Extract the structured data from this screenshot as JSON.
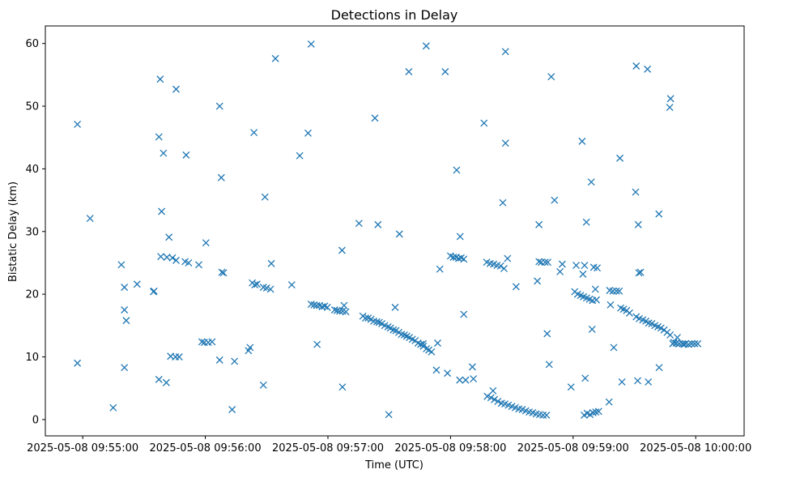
{
  "chart_data": {
    "type": "scatter",
    "title": "Detections in Delay",
    "xlabel": "Time (UTC)",
    "ylabel": "Bistatic Delay (km)",
    "x_unit": "seconds after 2025-05-08 09:55:00 UTC",
    "xlim": [
      -18.3,
      323.7
    ],
    "ylim": [
      -2.6,
      62.8
    ],
    "x_ticks": [
      {
        "value": 0,
        "label": "2025-05-08 09:55:00"
      },
      {
        "value": 60,
        "label": "2025-05-08 09:56:00"
      },
      {
        "value": 120,
        "label": "2025-05-08 09:57:00"
      },
      {
        "value": 180,
        "label": "2025-05-08 09:58:00"
      },
      {
        "value": 240,
        "label": "2025-05-08 09:59:00"
      },
      {
        "value": 300,
        "label": "2025-05-08 10:00:00"
      }
    ],
    "y_ticks": [
      {
        "value": 0,
        "label": "0"
      },
      {
        "value": 10,
        "label": "10"
      },
      {
        "value": 20,
        "label": "20"
      },
      {
        "value": 30,
        "label": "30"
      },
      {
        "value": 40,
        "label": "40"
      },
      {
        "value": 50,
        "label": "50"
      },
      {
        "value": 60,
        "label": "60"
      }
    ],
    "marker": "x",
    "color": "#1f77b4",
    "grid": false,
    "series": [
      {
        "name": "Detections",
        "points": [
          [
            -2.6,
            47.1
          ],
          [
            -2.6,
            9.0
          ],
          [
            3.6,
            32.1
          ],
          [
            14.9,
            1.9
          ],
          [
            18.9,
            24.7
          ],
          [
            20.4,
            21.1
          ],
          [
            20.4,
            17.5
          ],
          [
            20.4,
            8.3
          ],
          [
            21.3,
            15.8
          ],
          [
            26.6,
            21.6
          ],
          [
            34.6,
            20.4
          ],
          [
            34.9,
            20.5
          ],
          [
            37.9,
            54.3
          ],
          [
            37.3,
            45.1
          ],
          [
            38.6,
            33.2
          ],
          [
            39.5,
            42.5
          ],
          [
            42.2,
            29.1
          ],
          [
            38.2,
            26.0
          ],
          [
            41.2,
            25.9
          ],
          [
            43.9,
            25.8
          ],
          [
            37.3,
            6.4
          ],
          [
            40.9,
            5.9
          ],
          [
            43.0,
            10.1
          ],
          [
            45.4,
            10.0
          ],
          [
            47.2,
            10.0
          ],
          [
            45.7,
            52.7
          ],
          [
            45.7,
            25.4
          ],
          [
            50.6,
            42.2
          ],
          [
            50.1,
            25.2
          ],
          [
            51.8,
            25.0
          ],
          [
            56.8,
            24.7
          ],
          [
            58.3,
            12.4
          ],
          [
            59.5,
            12.3
          ],
          [
            60.3,
            28.2
          ],
          [
            61.4,
            12.3
          ],
          [
            63.3,
            12.4
          ],
          [
            67.0,
            50.0
          ],
          [
            67.8,
            38.6
          ],
          [
            68.1,
            23.5
          ],
          [
            68.9,
            23.4
          ],
          [
            67.0,
            9.5
          ],
          [
            73.1,
            1.6
          ],
          [
            74.3,
            9.3
          ],
          [
            81.1,
            11.0
          ],
          [
            81.9,
            11.5
          ],
          [
            83.0,
            21.8
          ],
          [
            83.8,
            45.8
          ],
          [
            84.2,
            21.5
          ],
          [
            85.3,
            21.6
          ],
          [
            88.4,
            5.5
          ],
          [
            89.2,
            35.5
          ],
          [
            88.4,
            21.1
          ],
          [
            90.0,
            21.0
          ],
          [
            91.9,
            20.8
          ],
          [
            92.3,
            24.9
          ],
          [
            94.3,
            57.6
          ],
          [
            102.3,
            21.5
          ],
          [
            106.2,
            42.1
          ],
          [
            110.3,
            45.7
          ],
          [
            111.8,
            59.9
          ],
          [
            111.8,
            18.4
          ],
          [
            113.2,
            18.3
          ],
          [
            114.5,
            18.2
          ],
          [
            115.9,
            18.2
          ],
          [
            117.2,
            18.0
          ],
          [
            118.4,
            18.1
          ],
          [
            119.7,
            17.9
          ],
          [
            114.7,
            12.0
          ],
          [
            123.3,
            17.5
          ],
          [
            124.5,
            17.4
          ],
          [
            125.8,
            17.3
          ],
          [
            127.2,
            17.3
          ],
          [
            128.8,
            17.2
          ],
          [
            126.9,
            27.0
          ],
          [
            127.9,
            18.2
          ],
          [
            127.1,
            5.2
          ],
          [
            135.2,
            31.3
          ],
          [
            137.1,
            16.5
          ],
          [
            138.4,
            16.2
          ],
          [
            139.7,
            16.2
          ],
          [
            141.1,
            16.0
          ],
          [
            142.4,
            15.7
          ],
          [
            143.9,
            15.6
          ],
          [
            145.1,
            15.5
          ],
          [
            146.4,
            15.3
          ],
          [
            147.8,
            15.0
          ],
          [
            149.4,
            14.8
          ],
          [
            150.6,
            14.6
          ],
          [
            152.0,
            14.3
          ],
          [
            153.3,
            14.2
          ],
          [
            154.7,
            13.9
          ],
          [
            156.0,
            13.6
          ],
          [
            157.4,
            13.5
          ],
          [
            158.6,
            13.3
          ],
          [
            159.9,
            13.1
          ],
          [
            161.3,
            12.8
          ],
          [
            162.7,
            12.6
          ],
          [
            164.1,
            12.2
          ],
          [
            165.4,
            12.0
          ],
          [
            166.7,
            11.7
          ],
          [
            168.2,
            11.3
          ],
          [
            169.4,
            11.1
          ],
          [
            170.7,
            10.8
          ],
          [
            166.6,
            12.1
          ],
          [
            143.0,
            48.1
          ],
          [
            144.5,
            31.1
          ],
          [
            149.8,
            0.8
          ],
          [
            152.9,
            17.9
          ],
          [
            155.0,
            29.6
          ],
          [
            159.6,
            55.5
          ],
          [
            168.1,
            59.6
          ],
          [
            180.0,
            26.1
          ],
          [
            181.4,
            25.9
          ],
          [
            182.8,
            25.9
          ],
          [
            184.0,
            25.7
          ],
          [
            185.2,
            25.8
          ],
          [
            186.5,
            25.6
          ],
          [
            177.4,
            55.5
          ],
          [
            178.5,
            7.4
          ],
          [
            173.1,
            7.9
          ],
          [
            173.7,
            12.2
          ],
          [
            174.8,
            24.0
          ],
          [
            184.5,
            6.3
          ],
          [
            191.2,
            6.5
          ],
          [
            187.4,
            6.3
          ],
          [
            196.4,
            47.3
          ],
          [
            183.0,
            39.8
          ],
          [
            184.7,
            29.2
          ],
          [
            186.5,
            16.8
          ],
          [
            190.7,
            8.4
          ],
          [
            197.7,
            25.1
          ],
          [
            199.4,
            24.9
          ],
          [
            201.1,
            24.8
          ],
          [
            202.8,
            24.6
          ],
          [
            204.5,
            24.5
          ],
          [
            206.2,
            24.1
          ],
          [
            207.9,
            25.7
          ],
          [
            198.0,
            3.7
          ],
          [
            199.8,
            3.5
          ],
          [
            200.8,
            4.6
          ],
          [
            201.5,
            3.2
          ],
          [
            203.2,
            2.9
          ],
          [
            204.9,
            2.6
          ],
          [
            206.6,
            2.5
          ],
          [
            208.3,
            2.3
          ],
          [
            210.0,
            2.1
          ],
          [
            211.7,
            1.9
          ],
          [
            213.4,
            1.7
          ],
          [
            215.1,
            1.6
          ],
          [
            216.8,
            1.4
          ],
          [
            218.5,
            1.2
          ],
          [
            220.2,
            1.1
          ],
          [
            221.9,
            0.9
          ],
          [
            223.6,
            0.8
          ],
          [
            225.3,
            0.7
          ],
          [
            227.0,
            0.7
          ],
          [
            206.9,
            58.7
          ],
          [
            206.9,
            44.1
          ],
          [
            205.6,
            34.6
          ],
          [
            212.1,
            21.2
          ],
          [
            223.3,
            25.2
          ],
          [
            224.4,
            25.1
          ],
          [
            226.3,
            25.1
          ],
          [
            227.3,
            13.7
          ],
          [
            227.6,
            25.1
          ],
          [
            222.5,
            22.1
          ],
          [
            223.3,
            31.1
          ],
          [
            228.3,
            8.8
          ],
          [
            229.3,
            54.7
          ],
          [
            230.9,
            35.0
          ],
          [
            234.7,
            24.8
          ],
          [
            233.6,
            23.6
          ],
          [
            239.0,
            5.2
          ],
          [
            240.8,
            20.4
          ],
          [
            242.2,
            20.0
          ],
          [
            243.7,
            19.8
          ],
          [
            245.1,
            19.6
          ],
          [
            246.6,
            19.4
          ],
          [
            248.0,
            19.2
          ],
          [
            249.5,
            19.0
          ],
          [
            251.4,
            19.1
          ],
          [
            241.5,
            24.6
          ],
          [
            244.4,
            44.4
          ],
          [
            245.6,
            24.6
          ],
          [
            244.8,
            23.2
          ],
          [
            246.5,
            31.5
          ],
          [
            245.9,
            6.6
          ],
          [
            249.3,
            14.4
          ],
          [
            248.9,
            37.9
          ],
          [
            250.1,
            24.3
          ],
          [
            251.8,
            24.2
          ],
          [
            250.9,
            20.8
          ],
          [
            245.4,
            0.7
          ],
          [
            246.9,
            1.0
          ],
          [
            248.3,
            0.8
          ],
          [
            249.7,
            1.1
          ],
          [
            251.1,
            1.2
          ],
          [
            252.5,
            1.3
          ],
          [
            257.6,
            2.8
          ],
          [
            257.9,
            20.6
          ],
          [
            259.5,
            20.5
          ],
          [
            261.2,
            20.5
          ],
          [
            262.6,
            20.5
          ],
          [
            258.3,
            18.3
          ],
          [
            259.9,
            11.5
          ],
          [
            262.9,
            41.7
          ],
          [
            263.3,
            17.8
          ],
          [
            264.7,
            17.6
          ],
          [
            266.2,
            17.4
          ],
          [
            267.6,
            17.0
          ],
          [
            270.9,
            56.4
          ],
          [
            270.6,
            36.3
          ],
          [
            271.9,
            31.1
          ],
          [
            272.2,
            23.4
          ],
          [
            273.0,
            23.5
          ],
          [
            270.9,
            16.4
          ],
          [
            272.4,
            16.1
          ],
          [
            274.1,
            15.9
          ],
          [
            275.6,
            15.7
          ],
          [
            277.0,
            15.4
          ],
          [
            278.5,
            15.3
          ],
          [
            280.0,
            15.0
          ],
          [
            281.5,
            14.8
          ],
          [
            283.0,
            14.6
          ],
          [
            284.5,
            14.3
          ],
          [
            286.0,
            13.9
          ],
          [
            287.5,
            13.5
          ],
          [
            276.4,
            55.9
          ],
          [
            287.7,
            51.2
          ],
          [
            287.3,
            49.8
          ],
          [
            282.0,
            32.8
          ],
          [
            276.8,
            6.0
          ],
          [
            271.6,
            6.2
          ],
          [
            263.9,
            6.0
          ],
          [
            282.1,
            8.3
          ],
          [
            289.3,
            12.3
          ],
          [
            290.5,
            12.2
          ],
          [
            291.0,
            13.1
          ],
          [
            292.0,
            12.1
          ],
          [
            293.5,
            12.1
          ],
          [
            295.0,
            12.1
          ],
          [
            296.5,
            12.0
          ],
          [
            298.0,
            12.1
          ],
          [
            299.5,
            12.1
          ],
          [
            301.0,
            12.1
          ],
          [
            288.8,
            12.1
          ],
          [
            294.2,
            12.0
          ]
        ]
      }
    ]
  }
}
